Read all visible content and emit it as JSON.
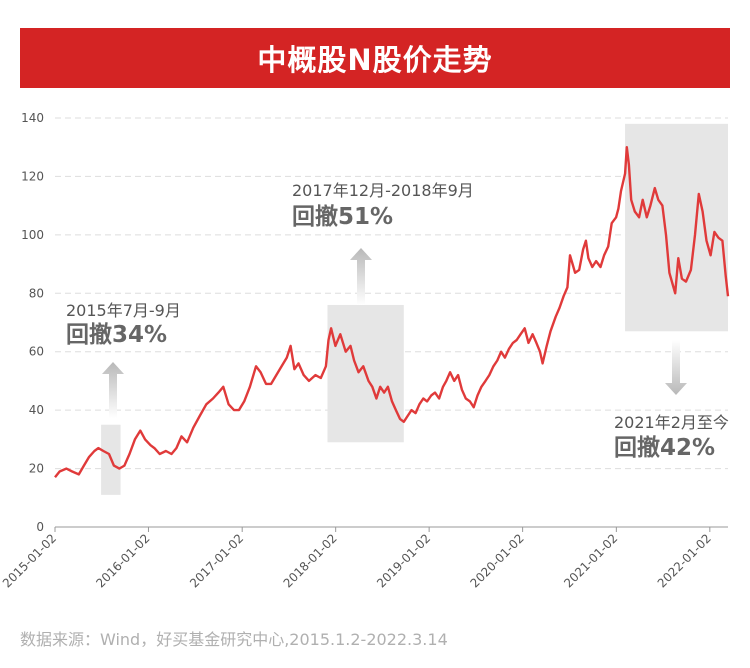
{
  "title": "中概股N股价走势",
  "source": "数据来源：Wind，好买基金研究中心,2015.1.2-2022.3.14",
  "colors": {
    "accent": "#d42424",
    "line": "#e03a3a",
    "shade": "#e6e6e6",
    "arrow": "#b8b8b8"
  },
  "chart_data": {
    "type": "line",
    "title": "中概股N股价走势",
    "xlabel": "",
    "ylabel": "",
    "ylim": [
      0,
      140
    ],
    "yticks": [
      0,
      20,
      40,
      60,
      80,
      100,
      120,
      140
    ],
    "xlim": [
      "2015-01-02",
      "2022-03-14"
    ],
    "xticks": [
      "2015-01-02",
      "2016-01-02",
      "2017-01-02",
      "2018-01-02",
      "2019-01-02",
      "2020-01-02",
      "2021-01-02",
      "2022-01-02"
    ],
    "grid": true,
    "series": [
      {
        "name": "",
        "points": [
          [
            "2015-01-02",
            17
          ],
          [
            "2015-01-20",
            19
          ],
          [
            "2015-02-15",
            20
          ],
          [
            "2015-03-10",
            19
          ],
          [
            "2015-04-05",
            18
          ],
          [
            "2015-04-25",
            21
          ],
          [
            "2015-05-15",
            24
          ],
          [
            "2015-06-05",
            26
          ],
          [
            "2015-06-20",
            27
          ],
          [
            "2015-07-10",
            26
          ],
          [
            "2015-08-01",
            25
          ],
          [
            "2015-08-20",
            21
          ],
          [
            "2015-09-10",
            20
          ],
          [
            "2015-09-30",
            21
          ],
          [
            "2015-10-20",
            25
          ],
          [
            "2015-11-10",
            30
          ],
          [
            "2015-12-01",
            33
          ],
          [
            "2015-12-20",
            30
          ],
          [
            "2016-01-10",
            28
          ],
          [
            "2016-01-25",
            27
          ],
          [
            "2016-02-15",
            25
          ],
          [
            "2016-03-10",
            26
          ],
          [
            "2016-04-01",
            25
          ],
          [
            "2016-04-20",
            27
          ],
          [
            "2016-05-10",
            31
          ],
          [
            "2016-06-01",
            29
          ],
          [
            "2016-06-25",
            34
          ],
          [
            "2016-07-20",
            38
          ],
          [
            "2016-08-15",
            42
          ],
          [
            "2016-09-10",
            44
          ],
          [
            "2016-10-01",
            46
          ],
          [
            "2016-10-20",
            48
          ],
          [
            "2016-11-10",
            42
          ],
          [
            "2016-12-01",
            40
          ],
          [
            "2016-12-20",
            40
          ],
          [
            "2017-01-10",
            43
          ],
          [
            "2017-02-01",
            48
          ],
          [
            "2017-02-25",
            55
          ],
          [
            "2017-03-15",
            53
          ],
          [
            "2017-04-05",
            49
          ],
          [
            "2017-04-25",
            49
          ],
          [
            "2017-05-15",
            52
          ],
          [
            "2017-06-05",
            55
          ],
          [
            "2017-06-25",
            58
          ],
          [
            "2017-07-10",
            62
          ],
          [
            "2017-07-25",
            54
          ],
          [
            "2017-08-10",
            56
          ],
          [
            "2017-08-30",
            52
          ],
          [
            "2017-09-20",
            50
          ],
          [
            "2017-10-15",
            52
          ],
          [
            "2017-11-05",
            51
          ],
          [
            "2017-11-25",
            55
          ],
          [
            "2017-12-05",
            64
          ],
          [
            "2017-12-15",
            68
          ],
          [
            "2018-01-01",
            62
          ],
          [
            "2018-01-20",
            66
          ],
          [
            "2018-02-10",
            60
          ],
          [
            "2018-03-01",
            62
          ],
          [
            "2018-03-15",
            57
          ],
          [
            "2018-04-01",
            53
          ],
          [
            "2018-04-20",
            55
          ],
          [
            "2018-05-10",
            50
          ],
          [
            "2018-05-25",
            48
          ],
          [
            "2018-06-10",
            44
          ],
          [
            "2018-06-25",
            48
          ],
          [
            "2018-07-10",
            46
          ],
          [
            "2018-07-25",
            48
          ],
          [
            "2018-08-10",
            43
          ],
          [
            "2018-08-25",
            40
          ],
          [
            "2018-09-10",
            37
          ],
          [
            "2018-09-25",
            36
          ],
          [
            "2018-10-10",
            38
          ],
          [
            "2018-10-25",
            40
          ],
          [
            "2018-11-10",
            39
          ],
          [
            "2018-11-25",
            42
          ],
          [
            "2018-12-10",
            44
          ],
          [
            "2018-12-25",
            43
          ],
          [
            "2019-01-10",
            45
          ],
          [
            "2019-01-25",
            46
          ],
          [
            "2019-02-10",
            44
          ],
          [
            "2019-02-25",
            48
          ],
          [
            "2019-03-10",
            50
          ],
          [
            "2019-03-25",
            53
          ],
          [
            "2019-04-10",
            50
          ],
          [
            "2019-04-25",
            52
          ],
          [
            "2019-05-10",
            47
          ],
          [
            "2019-05-25",
            44
          ],
          [
            "2019-06-10",
            43
          ],
          [
            "2019-06-25",
            41
          ],
          [
            "2019-07-10",
            45
          ],
          [
            "2019-07-25",
            48
          ],
          [
            "2019-08-10",
            50
          ],
          [
            "2019-08-25",
            52
          ],
          [
            "2019-09-10",
            55
          ],
          [
            "2019-09-25",
            57
          ],
          [
            "2019-10-10",
            60
          ],
          [
            "2019-10-25",
            58
          ],
          [
            "2019-11-10",
            61
          ],
          [
            "2019-11-25",
            63
          ],
          [
            "2019-12-10",
            64
          ],
          [
            "2019-12-25",
            66
          ],
          [
            "2020-01-10",
            68
          ],
          [
            "2020-01-25",
            63
          ],
          [
            "2020-02-10",
            66
          ],
          [
            "2020-02-25",
            63
          ],
          [
            "2020-03-10",
            60
          ],
          [
            "2020-03-20",
            56
          ],
          [
            "2020-04-05",
            62
          ],
          [
            "2020-04-20",
            67
          ],
          [
            "2020-05-10",
            72
          ],
          [
            "2020-05-25",
            75
          ],
          [
            "2020-06-10",
            79
          ],
          [
            "2020-06-25",
            82
          ],
          [
            "2020-07-05",
            93
          ],
          [
            "2020-07-15",
            90
          ],
          [
            "2020-07-25",
            87
          ],
          [
            "2020-08-10",
            88
          ],
          [
            "2020-08-25",
            95
          ],
          [
            "2020-09-05",
            98
          ],
          [
            "2020-09-15",
            92
          ],
          [
            "2020-09-30",
            89
          ],
          [
            "2020-10-15",
            91
          ],
          [
            "2020-11-01",
            89
          ],
          [
            "2020-11-15",
            93
          ],
          [
            "2020-12-01",
            96
          ],
          [
            "2020-12-15",
            104
          ],
          [
            "2021-01-01",
            106
          ],
          [
            "2021-01-10",
            109
          ],
          [
            "2021-01-20",
            115
          ],
          [
            "2021-02-05",
            121
          ],
          [
            "2021-02-12",
            130
          ],
          [
            "2021-02-20",
            124
          ],
          [
            "2021-03-01",
            112
          ],
          [
            "2021-03-15",
            108
          ],
          [
            "2021-04-01",
            106
          ],
          [
            "2021-04-15",
            112
          ],
          [
            "2021-05-01",
            106
          ],
          [
            "2021-05-15",
            110
          ],
          [
            "2021-06-01",
            116
          ],
          [
            "2021-06-15",
            112
          ],
          [
            "2021-07-01",
            110
          ],
          [
            "2021-07-15",
            100
          ],
          [
            "2021-07-28",
            87
          ],
          [
            "2021-08-10",
            83
          ],
          [
            "2021-08-20",
            80
          ],
          [
            "2021-09-01",
            92
          ],
          [
            "2021-09-15",
            85
          ],
          [
            "2021-10-01",
            84
          ],
          [
            "2021-10-20",
            88
          ],
          [
            "2021-11-05",
            100
          ],
          [
            "2021-11-20",
            114
          ],
          [
            "2021-12-05",
            108
          ],
          [
            "2021-12-20",
            98
          ],
          [
            "2022-01-05",
            93
          ],
          [
            "2022-01-20",
            101
          ],
          [
            "2022-02-05",
            99
          ],
          [
            "2022-02-20",
            98
          ],
          [
            "2022-03-05",
            86
          ],
          [
            "2022-03-14",
            79
          ]
        ]
      }
    ],
    "annotations": [
      {
        "date_label": "2015年7月-9月",
        "pct_label": "回撤34%",
        "range": [
          "2015-07-01",
          "2015-09-15"
        ],
        "yrange": [
          11,
          35
        ],
        "direction": "up"
      },
      {
        "date_label": "2017年12月-2018年9月",
        "pct_label": "回撤51%",
        "range": [
          "2017-12-01",
          "2018-09-25"
        ],
        "yrange": [
          29,
          76
        ],
        "direction": "up"
      },
      {
        "date_label": "2021年2月至今",
        "pct_label": "回撤42%",
        "range": [
          "2021-02-05",
          "2022-03-14"
        ],
        "yrange": [
          67,
          138
        ],
        "direction": "down"
      }
    ]
  }
}
